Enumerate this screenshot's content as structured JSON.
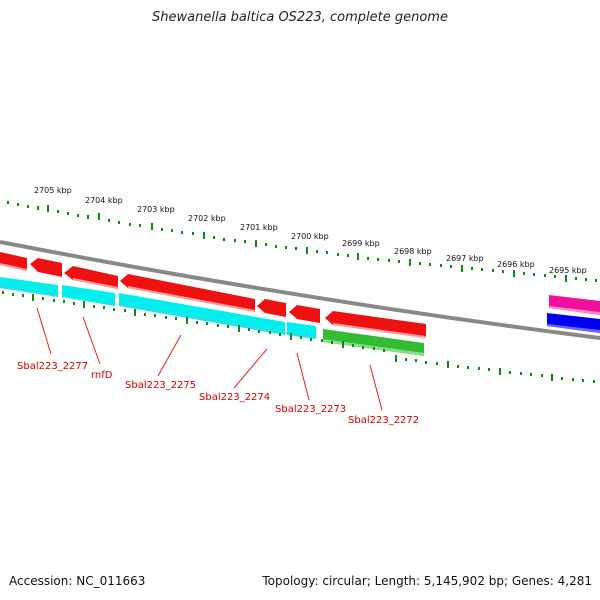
{
  "header": {
    "title": "Shewanella baltica OS223, complete genome"
  },
  "footer": {
    "accession": "Accession: NC_011663",
    "summary": "Topology: circular; Length: 5,145,902 bp; Genes: 4,281"
  },
  "ruler": {
    "labels": [
      "2705 kbp",
      "2704 kbp",
      "2703 kbp",
      "2702 kbp",
      "2701 kbp",
      "2700 kbp",
      "2699 kbp",
      "2698 kbp",
      "2697 kbp",
      "2696 kbp",
      "2695 kbp"
    ]
  },
  "gene_labels": [
    "Sbal223_2277",
    "rnfD",
    "Sbal223_2275",
    "Sbal223_2274",
    "Sbal223_2273",
    "Sbal223_2272"
  ],
  "colors": {
    "cds": "#ee1111",
    "orf": "#00eeee",
    "gene_green": "#33bb33",
    "magenta": "#ee1199",
    "blue": "#0000ee",
    "backbone": "#888888",
    "tick": "#118811",
    "label": "#cc0000"
  }
}
